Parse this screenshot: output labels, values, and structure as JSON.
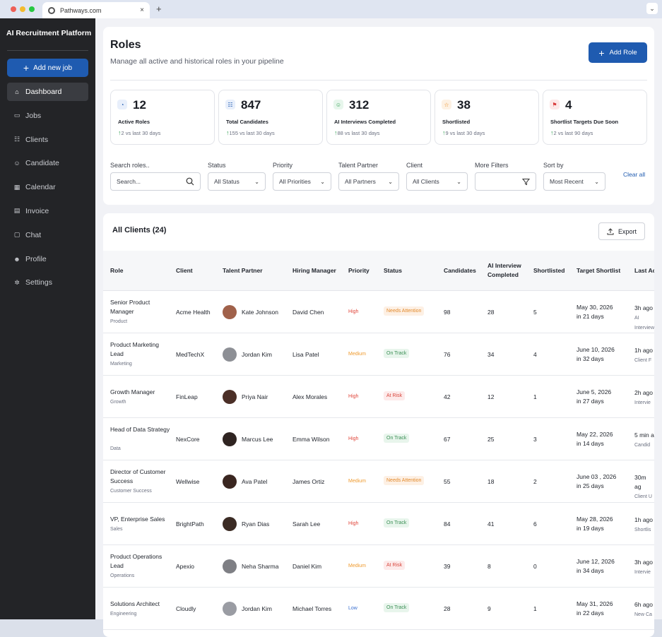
{
  "browser": {
    "tab_title": "Pathways.com",
    "new_tab": "+",
    "close": "×",
    "menu": "⌄"
  },
  "sidebar": {
    "brand": "AI Recruitment Platform",
    "add_job": "Add new job",
    "items": [
      {
        "label": "Dashboard",
        "icon": "home-icon",
        "glyph": "⌂",
        "active": true
      },
      {
        "label": "Jobs",
        "icon": "briefcase-icon",
        "glyph": "▭"
      },
      {
        "label": "Clients",
        "icon": "users-icon",
        "glyph": "☷"
      },
      {
        "label": "Candidate",
        "icon": "user-group-icon",
        "glyph": "☺"
      },
      {
        "label": "Calendar",
        "icon": "calendar-icon",
        "glyph": "▦"
      },
      {
        "label": "Invoice",
        "icon": "invoice-icon",
        "glyph": "▤"
      },
      {
        "label": "Chat",
        "icon": "chat-icon",
        "glyph": "▢"
      },
      {
        "label": "Profile",
        "icon": "profile-icon",
        "glyph": "☻"
      },
      {
        "label": "Settings",
        "icon": "gear-icon",
        "glyph": "✲"
      }
    ]
  },
  "header": {
    "title": "Roles",
    "subtitle": "Manage all active and historical roles in your pipeline",
    "add_role": "Add Role"
  },
  "stats": [
    {
      "value": "12",
      "label": "Active Roles",
      "change": "2 vs last 30 days",
      "icon": "roles-icon",
      "icon_bg": "#e8effb",
      "icon_color": "#1f5bb0"
    },
    {
      "value": "847",
      "label": "Total Candidates",
      "change": "155 vs last 30 days",
      "icon": "candidates-icon",
      "icon_bg": "#e8effb",
      "icon_color": "#1f5bb0"
    },
    {
      "value": "312",
      "label": "AI Interviews Completed",
      "change": "88 vs last 30 days",
      "icon": "interview-icon",
      "icon_bg": "#e7f6ec",
      "icon_color": "#2f9e50"
    },
    {
      "value": "38",
      "label": "Shortlisted",
      "change": "9 vs last 30 days",
      "icon": "star-icon",
      "icon_bg": "#fdf1e3",
      "icon_color": "#e98a1c"
    },
    {
      "value": "4",
      "label": "Shortlist Targets Due Soon",
      "change": "2 vs last 90 days",
      "icon": "flag-icon",
      "icon_bg": "#fde8e8",
      "icon_color": "#d93b3b"
    }
  ],
  "filters": {
    "search_label": "Search roles..",
    "search_placeholder": "Search...",
    "status_label": "Status",
    "status_value": "All Status",
    "priority_label": "Priority",
    "priority_value": "All Priorities",
    "partner_label": "Talent Partner",
    "partner_value": "All Partners",
    "client_label": "Client",
    "client_value": "All Clients",
    "more_label": "More Filters",
    "sort_label": "Sort by",
    "sort_value": "Most Recent",
    "clear": "Clear all"
  },
  "table": {
    "title": "All Clients (24)",
    "export": "Export",
    "headers": {
      "role": "Role",
      "client": "Client",
      "partner": "Talent Partner",
      "manager": "Hiring Manager",
      "priority": "Priority",
      "status": "Status",
      "candidates": "Candidates",
      "ai1": "AI Interview",
      "ai2": "Completed",
      "shortlisted": "Shortlisted",
      "target": "Target Shortlist",
      "last": "Last Activity"
    },
    "rows": [
      {
        "role": "Senior Product Manager",
        "dept": "Product",
        "client": "Acme Health",
        "partner": "Kate Johnson",
        "manager": "David Chen",
        "priority": "High",
        "status": "Needs Attention",
        "candidates": "98",
        "ai": "28",
        "shortlisted": "5",
        "target_date": "May 30, 2026",
        "target_in": "in 21 days",
        "last_time": "3h ago",
        "last_detail": "AI Interview"
      },
      {
        "role": "Product Marketing Lead",
        "dept": "Marketing",
        "client": "MedTechX",
        "partner": "Jordan Kim",
        "manager": "Lisa Patel",
        "priority": "Medium",
        "status": "On Track",
        "candidates": "76",
        "ai": "34",
        "shortlisted": "4",
        "target_date": "June 10, 2026",
        "target_in": "in 32 days",
        "last_time": "1h ago",
        "last_detail": "Client F"
      },
      {
        "role": "Growth Manager",
        "dept": "Growth",
        "client": "FinLeap",
        "partner": "Priya Nair",
        "manager": "Alex Morales",
        "priority": "High",
        "status": "At Risk",
        "candidates": "42",
        "ai": "12",
        "shortlisted": "1",
        "target_date": "June 5, 2026",
        "target_in": "in 27 days",
        "last_time": "2h ago",
        "last_detail": "Intervie"
      },
      {
        "role": "Head of Data Strategy",
        "dept": "Data",
        "client": "NexCore",
        "partner": "Marcus Lee",
        "manager": "Emma Wilson",
        "priority": "High",
        "status": "On Track",
        "candidates": "67",
        "ai": "25",
        "shortlisted": "3",
        "target_date": "May 22, 2026",
        "target_in": "in 14 days",
        "last_time": "5 min a",
        "last_detail": "Candid"
      },
      {
        "role": "Director of Customer Success",
        "dept": "Customer Success",
        "client": "Wellwise",
        "partner": "Ava Patel",
        "manager": "James Ortiz",
        "priority": "Medium",
        "status": "Needs Attention",
        "candidates": "55",
        "ai": "18",
        "shortlisted": "2",
        "target_date": "June 03 , 2026",
        "target_in": "in 25 days",
        "last_time": "30m ag",
        "last_detail": "Client U"
      },
      {
        "role": "VP, Enterprise Sales",
        "dept": "Sales",
        "client": "BrightPath",
        "partner": "Ryan Dias",
        "manager": "Sarah Lee",
        "priority": "High",
        "status": "On Track",
        "candidates": "84",
        "ai": "41",
        "shortlisted": "6",
        "target_date": "May 28, 2026",
        "target_in": "in 19 days",
        "last_time": "1h ago",
        "last_detail": "Shortlis"
      },
      {
        "role": "Product Operations Lead",
        "dept": "Operations",
        "client": "Apexio",
        "partner": "Neha Sharma",
        "manager": "Daniel Kim",
        "priority": "Medium",
        "status": "At Risk",
        "candidates": "39",
        "ai": "8",
        "shortlisted": "0",
        "target_date": "June 12, 2026",
        "target_in": "in 34 days",
        "last_time": "3h ago",
        "last_detail": "Intervie"
      },
      {
        "role": "Solutions Architect",
        "dept": "Engineering",
        "client": "Cloudly",
        "partner": "Jordan Kim",
        "manager": "Michael Torres",
        "priority": "Low",
        "status": "On Track",
        "candidates": "28",
        "ai": "9",
        "shortlisted": "1",
        "target_date": "May 31, 2026",
        "target_in": "in 22 days",
        "last_time": "6h ago",
        "last_detail": "New Ca"
      }
    ]
  },
  "colors": {
    "accent": "#1f5bb0",
    "priority": {
      "High": "#e0453a",
      "Medium": "#ef9a2d",
      "Low": "#3a6fd0"
    },
    "status": {
      "Needs Attention": {
        "bg": "#fdf0e4",
        "fg": "#e38a2c"
      },
      "On Track": {
        "bg": "#e8f5ec",
        "fg": "#3b8f55"
      },
      "At Risk": {
        "bg": "#fdeaea",
        "fg": "#d9473d"
      }
    }
  }
}
